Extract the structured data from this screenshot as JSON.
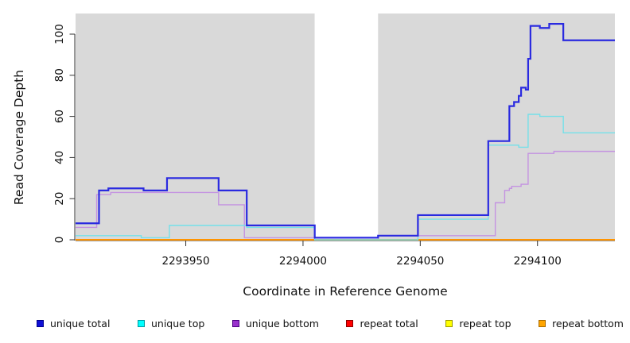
{
  "figure": {
    "background": "#ffffff",
    "panel_shade_color": "#d9d9d9",
    "axis_color": "#333333",
    "text_color": "#111111"
  },
  "chart_data": {
    "type": "line",
    "step_mode": "step-after",
    "title": "",
    "xlabel": "Coordinate in Reference Genome",
    "ylabel": "Read Coverage Depth",
    "xlim": [
      2293903,
      2294133
    ],
    "ylim": [
      0,
      110
    ],
    "x_ticks": [
      2293950,
      2294000,
      2294050,
      2294100
    ],
    "y_ticks": [
      0,
      20,
      40,
      60,
      80,
      100
    ],
    "grid": false,
    "legend_position": "bottom",
    "shaded_regions": [
      {
        "kind": "unique-region-shade",
        "span": [
          2293903,
          2294005
        ],
        "color": "#d9d9d9"
      },
      {
        "kind": "repeat-region-gap",
        "span": [
          2294005,
          2294032
        ],
        "color": "#ffffff"
      },
      {
        "kind": "unique-region-shade",
        "span": [
          2294032,
          2294133
        ],
        "color": "#d9d9d9"
      }
    ],
    "series": [
      {
        "name": "unique total",
        "z": 6,
        "line_color": "#2a2ae0",
        "width": 2.2,
        "legend_fill": "#0f0fd6",
        "legend_border": "#00008b",
        "points": [
          [
            2293903,
            8
          ],
          [
            2293913,
            24
          ],
          [
            2293917,
            25
          ],
          [
            2293932,
            24
          ],
          [
            2293942,
            30
          ],
          [
            2293964,
            24
          ],
          [
            2293976,
            7
          ],
          [
            2294005,
            1
          ],
          [
            2294032,
            2
          ],
          [
            2294049,
            12
          ],
          [
            2294079,
            48
          ],
          [
            2294088,
            65
          ],
          [
            2294090,
            67
          ],
          [
            2294092,
            70
          ],
          [
            2294093,
            74
          ],
          [
            2294095,
            73
          ],
          [
            2294096,
            88
          ],
          [
            2294097,
            104
          ],
          [
            2294101,
            103
          ],
          [
            2294105,
            105
          ],
          [
            2294111,
            97
          ],
          [
            2294133,
            97
          ]
        ]
      },
      {
        "name": "unique top",
        "z": 5,
        "line_color": "#74e0e9",
        "width": 1.4,
        "legend_fill": "#00ffff",
        "legend_border": "#00999f",
        "points": [
          [
            2293903,
            2
          ],
          [
            2293931,
            1
          ],
          [
            2293943,
            7
          ],
          [
            2293976,
            6
          ],
          [
            2294005,
            0
          ],
          [
            2294049,
            10
          ],
          [
            2294079,
            46
          ],
          [
            2294092,
            45
          ],
          [
            2294096,
            61
          ],
          [
            2294101,
            60
          ],
          [
            2294111,
            52
          ],
          [
            2294133,
            52
          ]
        ]
      },
      {
        "name": "unique bottom",
        "z": 4,
        "line_color": "#c493e1",
        "width": 1.4,
        "legend_fill": "#9932cc",
        "legend_border": "#4b0082",
        "points": [
          [
            2293903,
            6
          ],
          [
            2293912,
            22
          ],
          [
            2293918,
            23
          ],
          [
            2293964,
            17
          ],
          [
            2293975,
            1
          ],
          [
            2294032,
            2
          ],
          [
            2294082,
            18
          ],
          [
            2294086,
            24
          ],
          [
            2294088,
            25
          ],
          [
            2294089,
            26
          ],
          [
            2294093,
            27
          ],
          [
            2294096,
            42
          ],
          [
            2294107,
            43
          ],
          [
            2294133,
            43
          ]
        ]
      },
      {
        "name": "repeat total",
        "z": 1,
        "line_color": "#ee2222",
        "width": 1.3,
        "legend_fill": "#ff0000",
        "legend_border": "#8b0000",
        "points": [
          [
            2293903,
            0
          ],
          [
            2294133,
            0
          ]
        ]
      },
      {
        "name": "repeat top",
        "z": 2,
        "line_color": "#f2f20a",
        "width": 1.3,
        "legend_fill": "#ffff00",
        "legend_border": "#9a9a00",
        "points": [
          [
            2293903,
            0
          ],
          [
            2294133,
            0
          ]
        ]
      },
      {
        "name": "repeat bottom",
        "z": 3,
        "line_color": "#ff9400",
        "width": 2.0,
        "legend_fill": "#ffa500",
        "legend_border": "#a86a00",
        "points": [
          [
            2293903,
            0
          ],
          [
            2294133,
            0
          ]
        ]
      }
    ]
  }
}
